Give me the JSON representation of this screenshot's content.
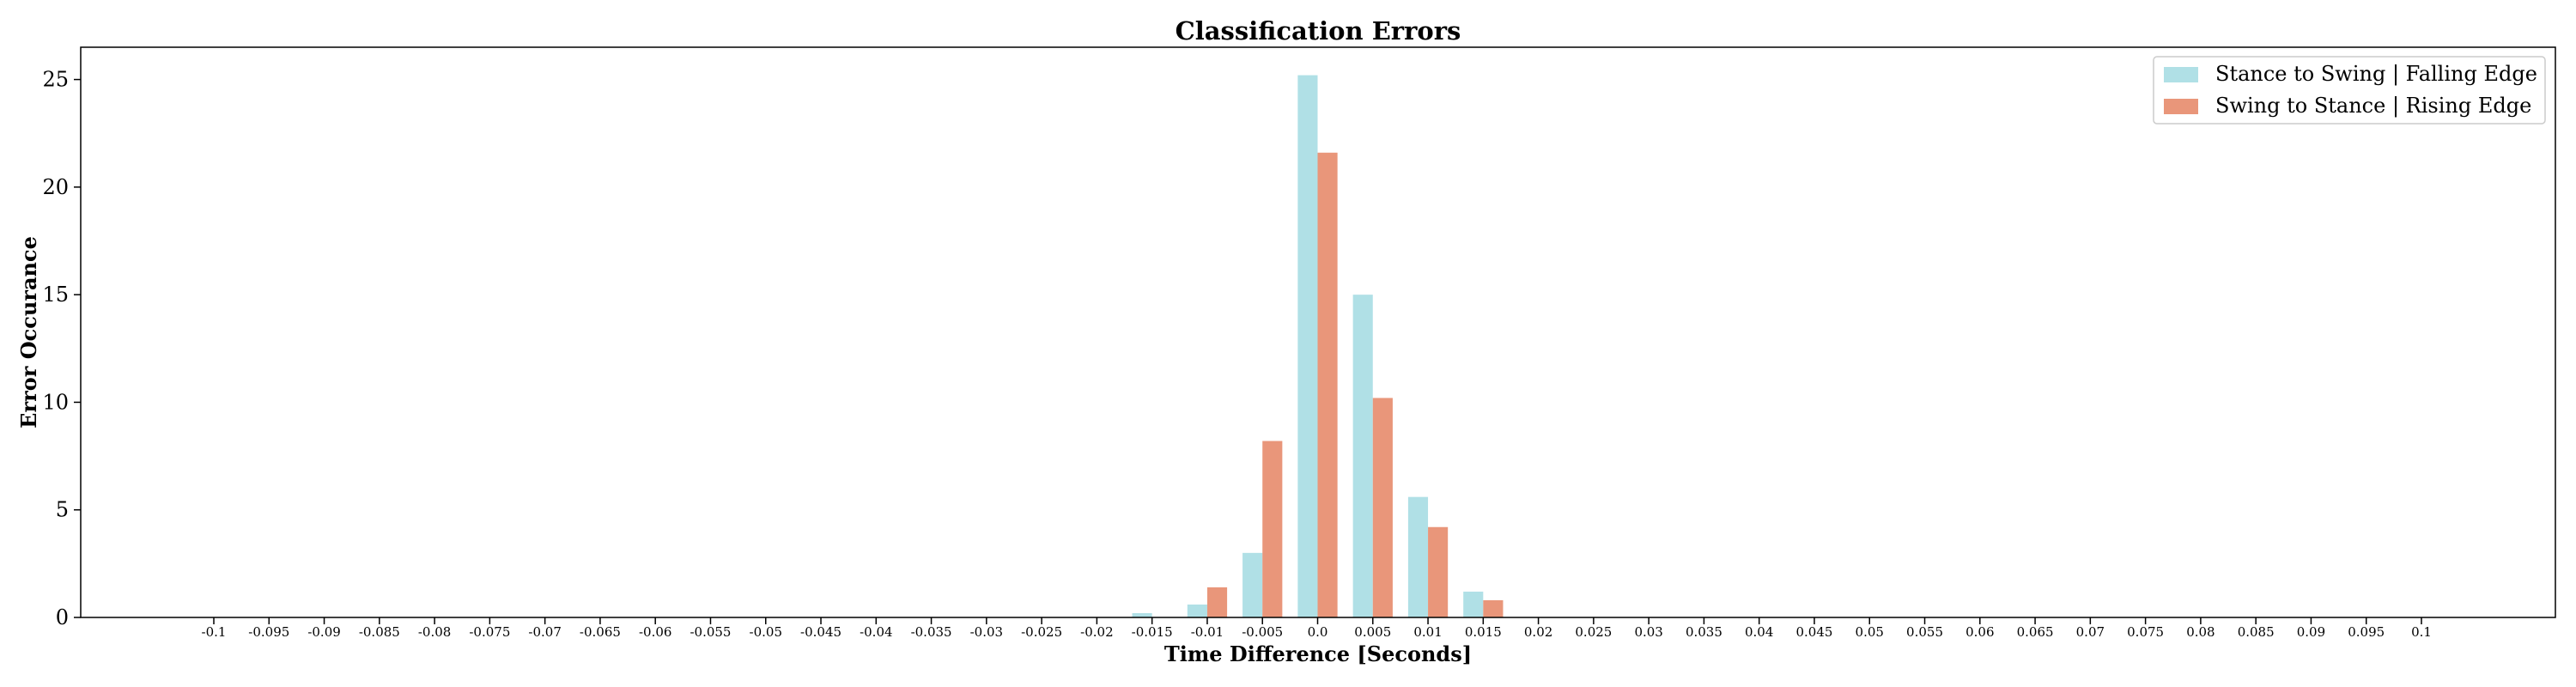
{
  "chart_data": {
    "type": "bar",
    "title": "Classification Errors",
    "xlabel": "Time Difference [Seconds]",
    "ylabel": "Error Occurance",
    "ylim": [
      0,
      26.5
    ],
    "yticks": [
      0,
      5,
      10,
      15,
      20,
      25
    ],
    "grid": false,
    "legend_position": "top-right",
    "categories": [
      "-0.1",
      "-0.095",
      "-0.09",
      "-0.085",
      "-0.08",
      "-0.075",
      "-0.07",
      "-0.065",
      "-0.06",
      "-0.055",
      "-0.05",
      "-0.045",
      "-0.04",
      "-0.035",
      "-0.03",
      "-0.025",
      "-0.02",
      "-0.015",
      "-0.01",
      "-0.005",
      "0.0",
      "0.005",
      "0.01",
      "0.015",
      "0.02",
      "0.025",
      "0.03",
      "0.035",
      "0.04",
      "0.045",
      "0.05",
      "0.055",
      "0.06",
      "0.065",
      "0.07",
      "0.075",
      "0.08",
      "0.085",
      "0.09",
      "0.095",
      "0.1"
    ],
    "series": [
      {
        "name": "Stance to Swing | Falling Edge",
        "color": "#b0e0e6",
        "values": [
          0,
          0,
          0,
          0,
          0,
          0,
          0,
          0,
          0,
          0,
          0,
          0,
          0,
          0,
          0,
          0,
          0,
          0.2,
          0.6,
          3.0,
          25.2,
          15.0,
          5.6,
          1.2,
          0,
          0,
          0,
          0,
          0,
          0,
          0,
          0,
          0,
          0,
          0,
          0,
          0,
          0,
          0,
          0,
          0
        ]
      },
      {
        "name": "Swing to Stance | Rising Edge",
        "color": "#e9967a",
        "values": [
          0,
          0,
          0,
          0,
          0,
          0,
          0,
          0,
          0,
          0,
          0,
          0,
          0,
          0,
          0,
          0,
          0,
          0,
          1.4,
          8.2,
          21.6,
          10.2,
          4.2,
          0.8,
          0,
          0,
          0,
          0,
          0,
          0,
          0,
          0,
          0,
          0,
          0,
          0,
          0,
          0,
          0,
          0,
          0
        ]
      }
    ]
  }
}
